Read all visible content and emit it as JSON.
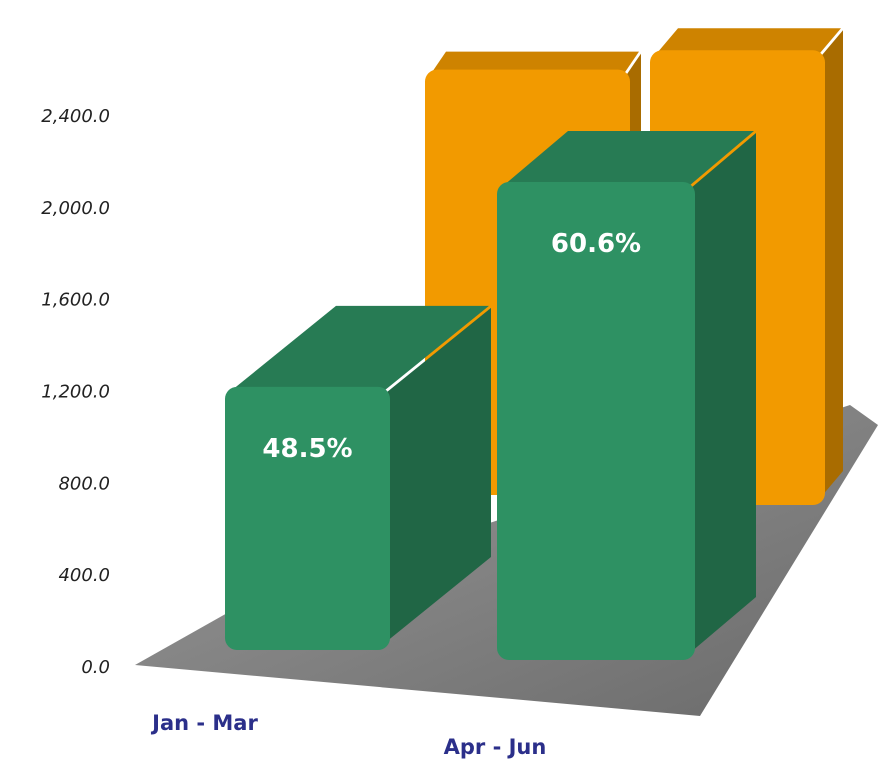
{
  "chart_data": {
    "type": "bar3d",
    "categories": [
      "Jan - Mar",
      "Apr - Jun"
    ],
    "series": [
      {
        "color": "#f29a00",
        "values": [
          2180,
          2330
        ]
      },
      {
        "color": "#2e9163",
        "values": [
          1146,
          2082
        ],
        "percent_labels": [
          "48.5%",
          "60.6%"
        ]
      }
    ],
    "ylim": [
      0,
      2400
    ],
    "yticks": [
      {
        "value": 0,
        "label": "0.0"
      },
      {
        "value": 400,
        "label": "400.0"
      },
      {
        "value": 800,
        "label": "800.0"
      },
      {
        "value": 1200,
        "label": "1,200.0"
      },
      {
        "value": 1600,
        "label": "1,600.0"
      },
      {
        "value": 2000,
        "label": "2,000.0"
      },
      {
        "value": 2400,
        "label": "2,400.0"
      }
    ]
  }
}
